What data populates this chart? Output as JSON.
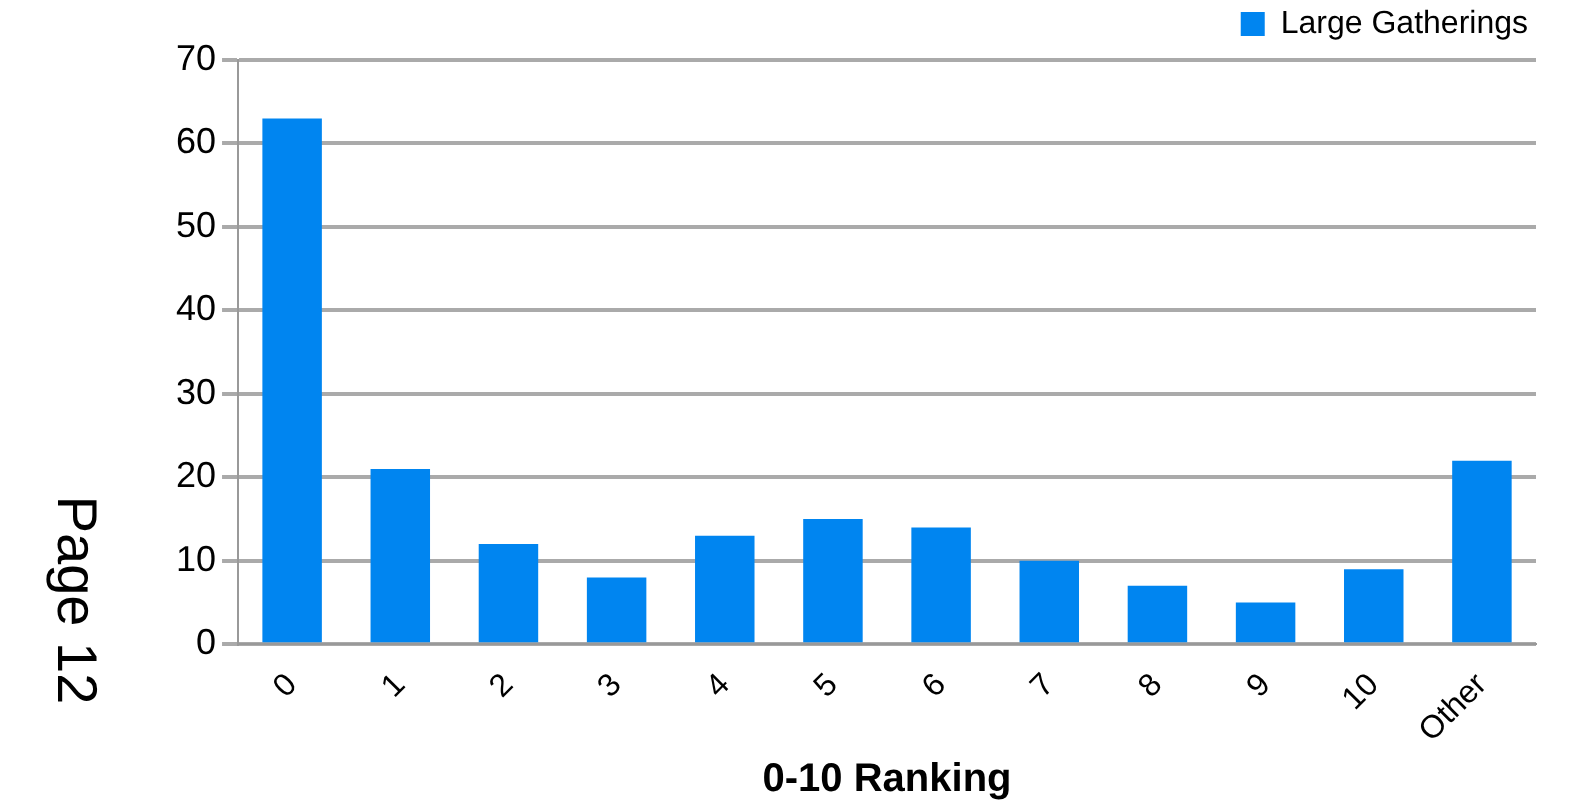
{
  "chart_data": {
    "type": "bar",
    "xlabel": "0-10 Ranking",
    "categories": [
      "0",
      "1",
      "2",
      "3",
      "4",
      "5",
      "6",
      "7",
      "8",
      "9",
      "10",
      "Other"
    ],
    "series": [
      {
        "name": "Large Gatherings",
        "color": "#0085f0",
        "values": [
          63,
          21,
          12,
          8,
          13,
          15,
          14,
          10,
          7,
          5,
          9,
          22
        ]
      }
    ],
    "ylim": [
      0,
      70
    ],
    "yticks": [
      0,
      10,
      20,
      30,
      40,
      50,
      60,
      70
    ],
    "grid": "y",
    "legend": "top right",
    "annotations": [
      "Page 12"
    ]
  }
}
